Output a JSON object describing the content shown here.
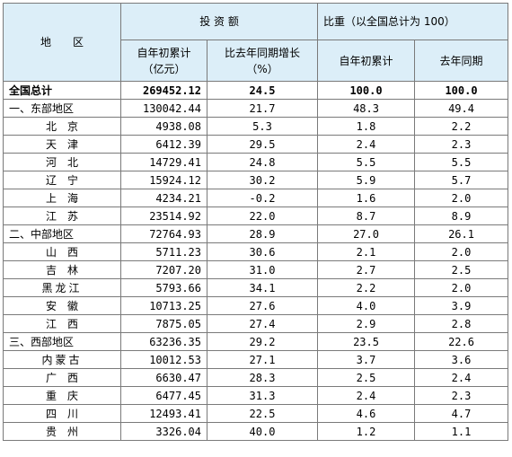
{
  "header": {
    "region": "地　　区",
    "investment": "投 资 额",
    "share": "比重（以全国总计为 100）",
    "cumulative_label": "自年初累计",
    "cumulative_unit": "（亿元）",
    "growth_label": "比去年同期增长",
    "growth_unit": "（%）",
    "share_cumulative": "自年初累计",
    "share_last_year": "去年同期"
  },
  "rows": [
    {
      "name": "全国总计",
      "amount": "269452.12",
      "growth": "24.5",
      "share": "100.0",
      "share_ly": "100.0",
      "kind": "total"
    },
    {
      "name": "一、东部地区",
      "amount": "130042.44",
      "growth": "21.7",
      "share": "48.3",
      "share_ly": "49.4",
      "kind": "region"
    },
    {
      "name": "北京",
      "amount": "4938.08",
      "growth": "5.3",
      "share": "1.8",
      "share_ly": "2.2",
      "kind": "prov"
    },
    {
      "name": "天津",
      "amount": "6412.39",
      "growth": "29.5",
      "share": "2.4",
      "share_ly": "2.3",
      "kind": "prov"
    },
    {
      "name": "河北",
      "amount": "14729.41",
      "growth": "24.8",
      "share": "5.5",
      "share_ly": "5.5",
      "kind": "prov"
    },
    {
      "name": "辽宁",
      "amount": "15924.12",
      "growth": "30.2",
      "share": "5.9",
      "share_ly": "5.7",
      "kind": "prov"
    },
    {
      "name": "上海",
      "amount": "4234.21",
      "growth": "-0.2",
      "share": "1.6",
      "share_ly": "2.0",
      "kind": "prov"
    },
    {
      "name": "江苏",
      "amount": "23514.92",
      "growth": "22.0",
      "share": "8.7",
      "share_ly": "8.9",
      "kind": "prov"
    },
    {
      "name": "二、中部地区",
      "amount": "72764.93",
      "growth": "28.9",
      "share": "27.0",
      "share_ly": "26.1",
      "kind": "region"
    },
    {
      "name": "山西",
      "amount": "5711.23",
      "growth": "30.6",
      "share": "2.1",
      "share_ly": "2.0",
      "kind": "prov"
    },
    {
      "name": "吉林",
      "amount": "7207.20",
      "growth": "31.0",
      "share": "2.7",
      "share_ly": "2.5",
      "kind": "prov"
    },
    {
      "name": "黑龙江",
      "amount": "5793.66",
      "growth": "34.1",
      "share": "2.2",
      "share_ly": "2.0",
      "kind": "prov3"
    },
    {
      "name": "安徽",
      "amount": "10713.25",
      "growth": "27.6",
      "share": "4.0",
      "share_ly": "3.9",
      "kind": "prov"
    },
    {
      "name": "江西",
      "amount": "7875.05",
      "growth": "27.4",
      "share": "2.9",
      "share_ly": "2.8",
      "kind": "prov"
    },
    {
      "name": "三、西部地区",
      "amount": "63236.35",
      "growth": "29.2",
      "share": "23.5",
      "share_ly": "22.6",
      "kind": "region"
    },
    {
      "name": "内蒙古",
      "amount": "10012.53",
      "growth": "27.1",
      "share": "3.7",
      "share_ly": "3.6",
      "kind": "prov3"
    },
    {
      "name": "广西",
      "amount": "6630.47",
      "growth": "28.3",
      "share": "2.5",
      "share_ly": "2.4",
      "kind": "prov"
    },
    {
      "name": "重庆",
      "amount": "6477.45",
      "growth": "31.3",
      "share": "2.4",
      "share_ly": "2.3",
      "kind": "prov"
    },
    {
      "name": "四川",
      "amount": "12493.41",
      "growth": "22.5",
      "share": "4.6",
      "share_ly": "4.7",
      "kind": "prov"
    },
    {
      "name": "贵州",
      "amount": "3326.04",
      "growth": "40.0",
      "share": "1.2",
      "share_ly": "1.1",
      "kind": "prov"
    }
  ]
}
